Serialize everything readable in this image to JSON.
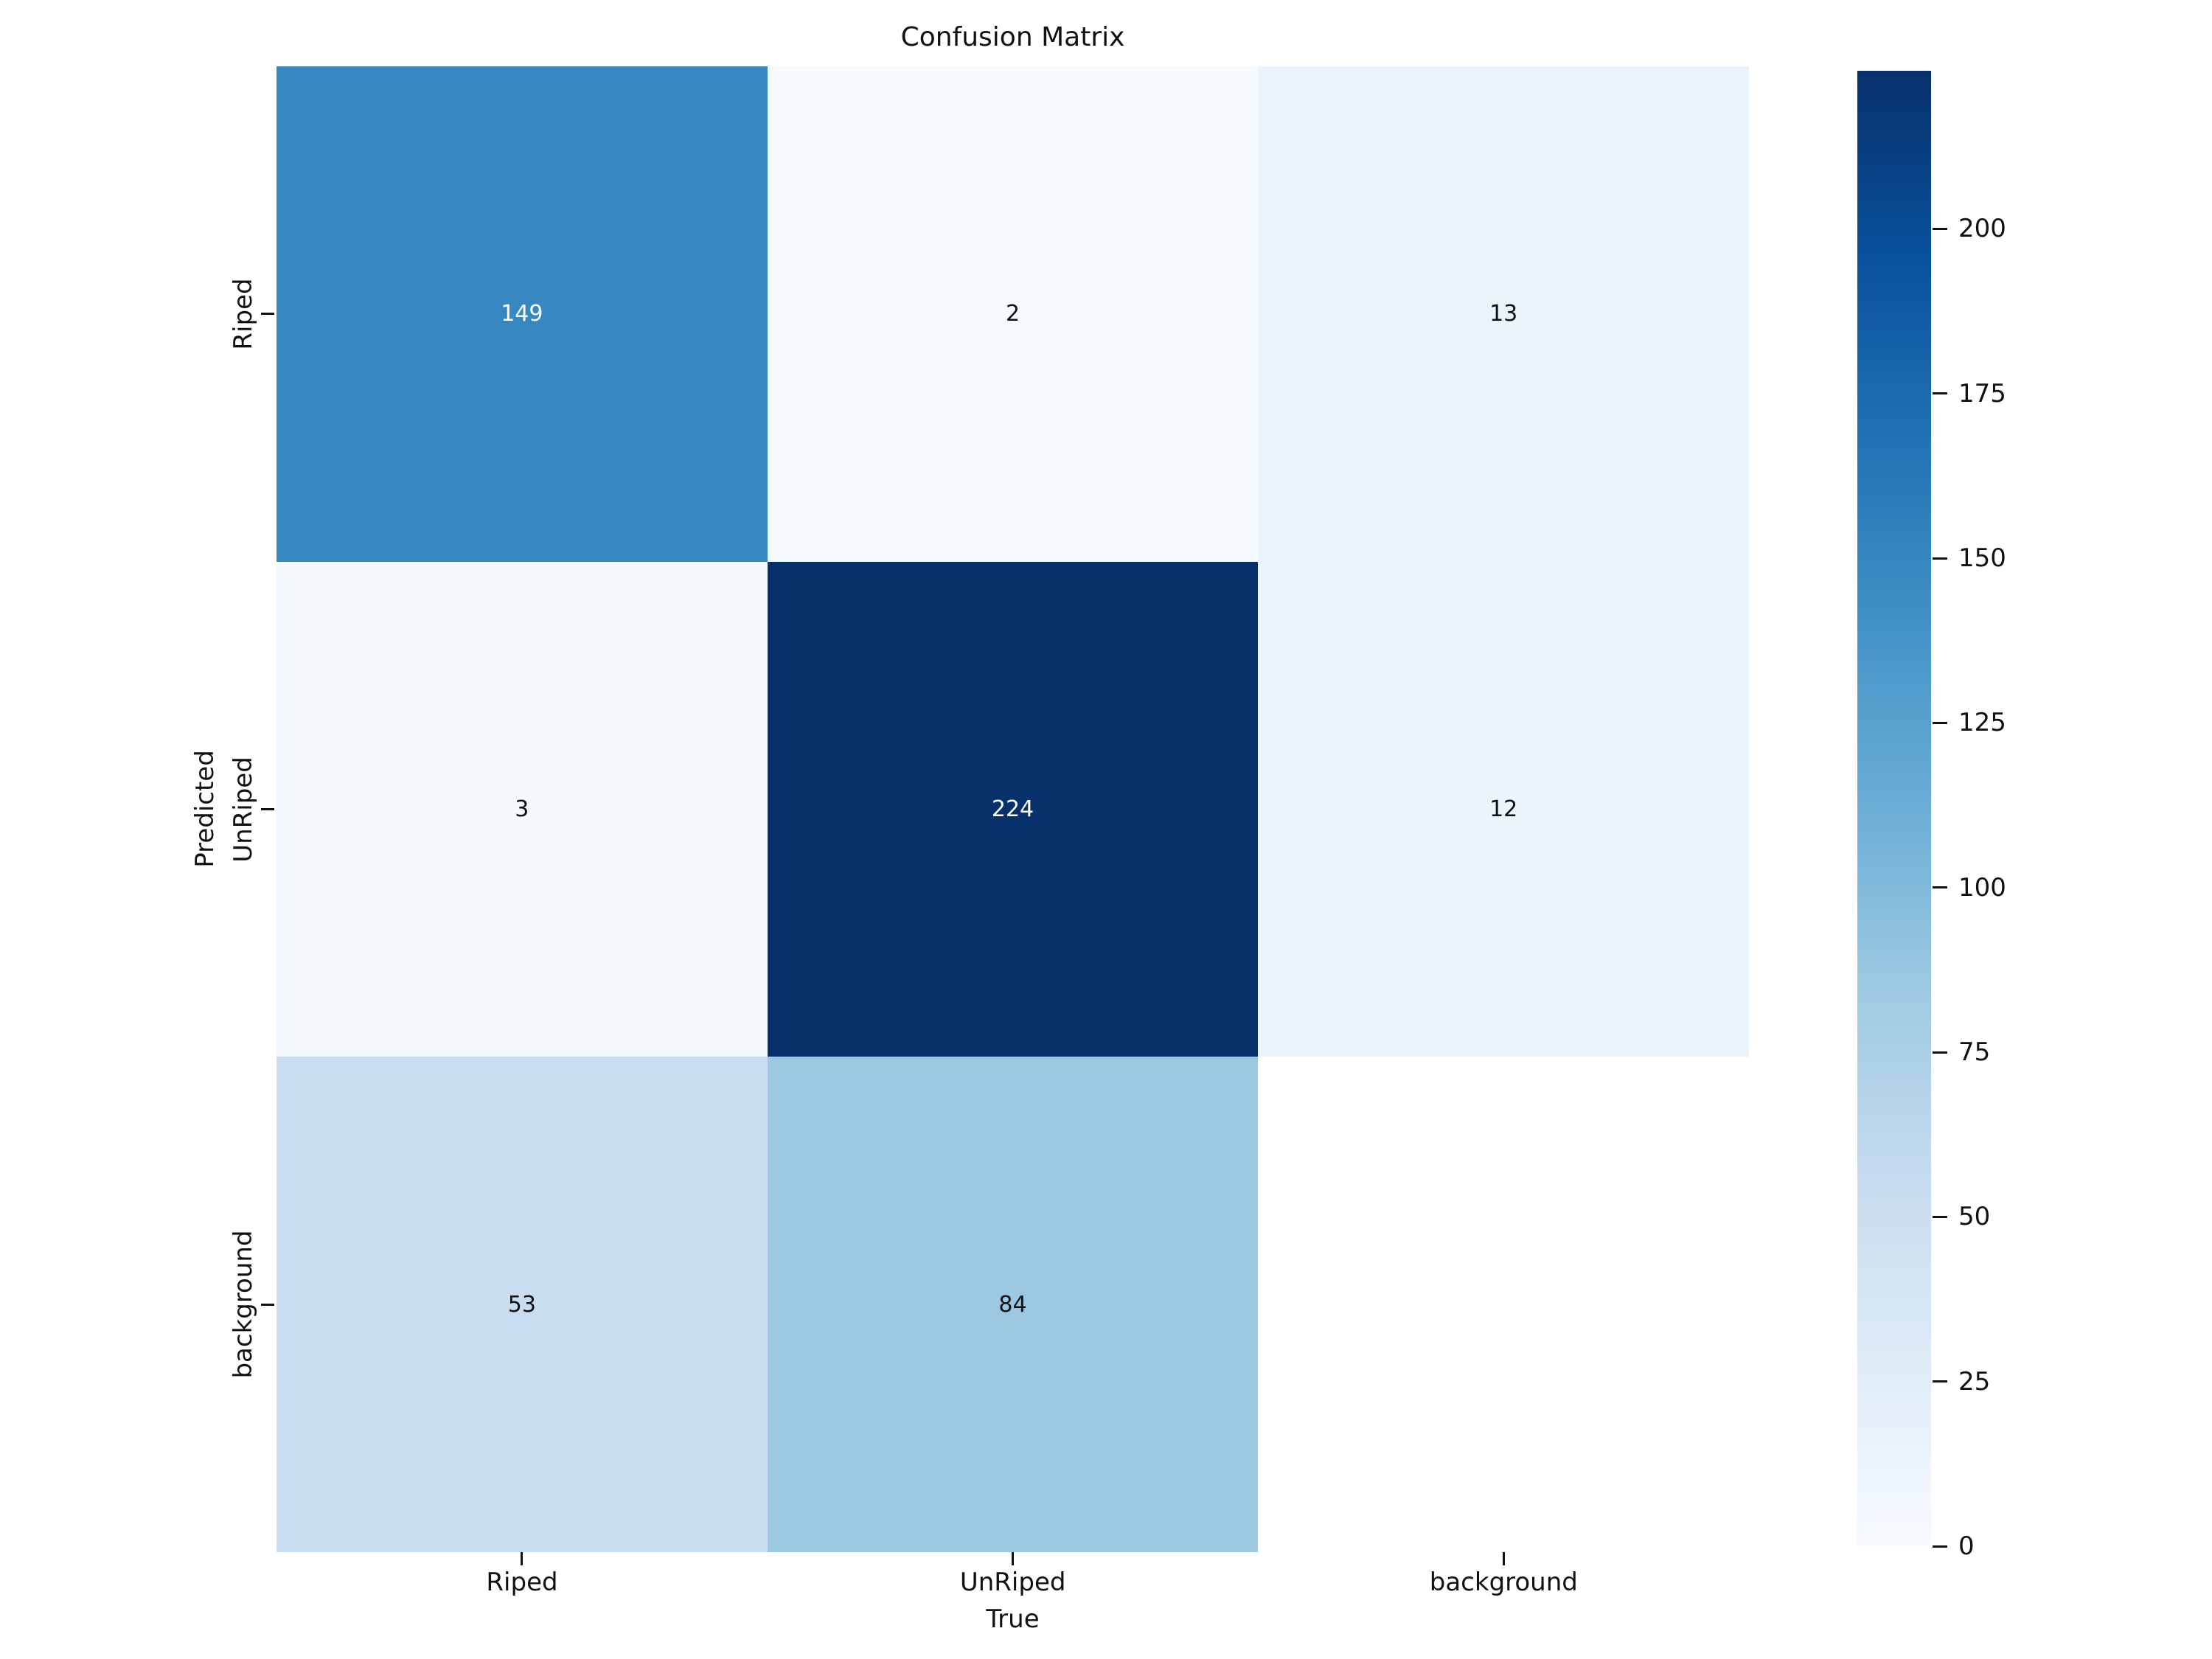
{
  "figure": {
    "background": "#ffffff"
  },
  "chart_data": {
    "type": "heatmap",
    "title": "Confusion Matrix",
    "xlabel": "True",
    "ylabel": "Predicted",
    "x_categories": [
      "Riped",
      "UnRiped",
      "background"
    ],
    "y_categories": [
      "Riped",
      "UnRiped",
      "background"
    ],
    "matrix": [
      [
        149,
        2,
        13
      ],
      [
        3,
        224,
        12
      ],
      [
        53,
        84,
        null
      ]
    ],
    "vmin": 0,
    "vmax": 224,
    "colormap": "Blues",
    "legend_position": "right-colorbar",
    "grid": false,
    "colorbar_ticks": [
      0,
      25,
      50,
      75,
      100,
      125,
      150,
      175,
      200
    ],
    "colormap_stops": [
      "#f7fbff",
      "#deebf7",
      "#c6dbef",
      "#9ecae1",
      "#6baed6",
      "#4292c6",
      "#2171b5",
      "#08519c",
      "#08306b"
    ],
    "cell_colors": [
      [
        "#3787c1",
        "#f5fafe",
        "#eaf2fa"
      ],
      [
        "#f3f8fd",
        "#08306b",
        "#ebf3fb"
      ],
      [
        "#c9ddf0",
        "#9cc8e1",
        "#ffffff"
      ]
    ],
    "cell_text_colors": [
      [
        "#ffffff",
        "#111111",
        "#111111"
      ],
      [
        "#111111",
        "#ffffff",
        "#111111"
      ],
      [
        "#111111",
        "#111111",
        "#111111"
      ]
    ]
  }
}
